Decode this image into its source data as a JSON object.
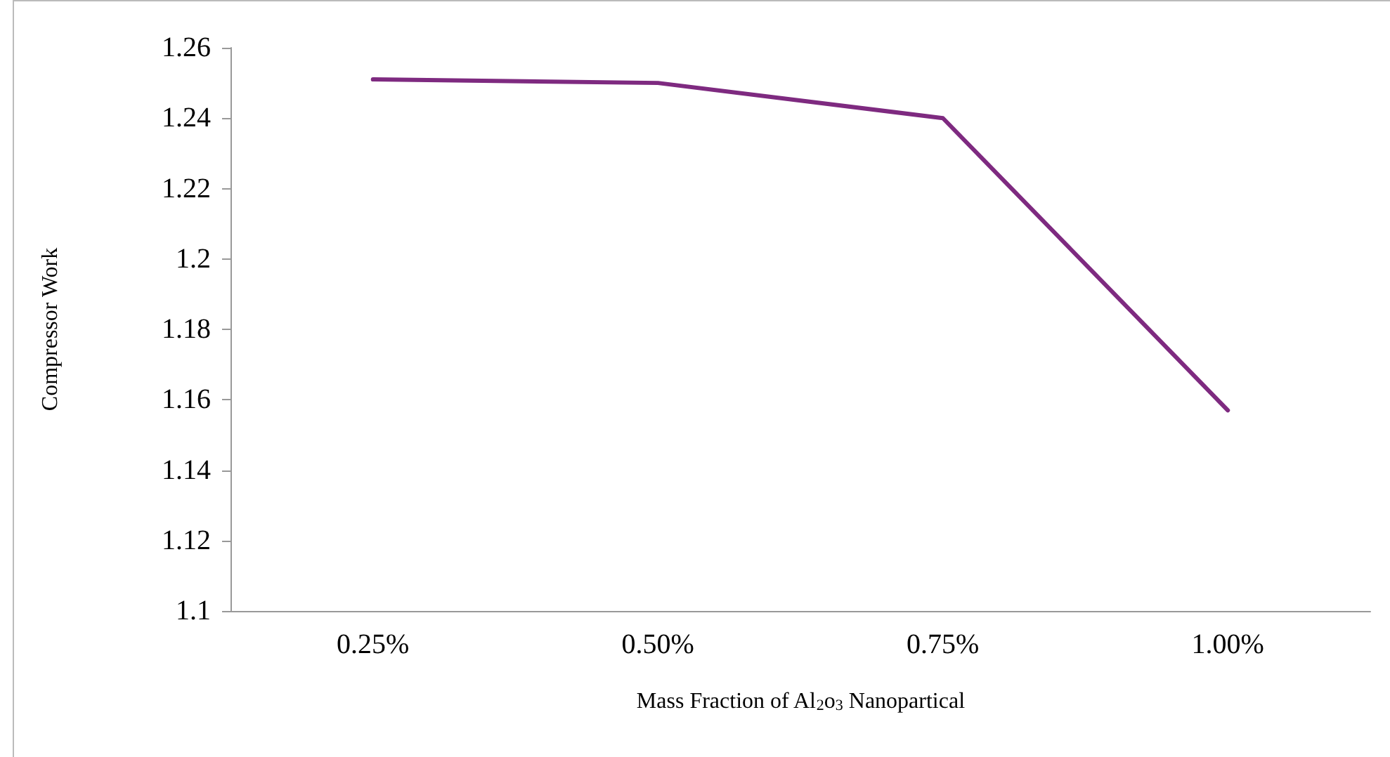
{
  "chart_data": {
    "type": "line",
    "xlabel": "Mass Fraction of Al$_{2}$o$_{3}$ Nanopartical",
    "ylabel": "Compressor Work",
    "categories": [
      "0.25%",
      "0.50%",
      "0.75%",
      "1.00%"
    ],
    "series": [
      {
        "color": "#7e2a80",
        "values": [
          1.251,
          1.25,
          1.24,
          1.157
        ]
      }
    ],
    "ylim": [
      1.1,
      1.26
    ],
    "yticks": [
      1.1,
      1.12,
      1.14,
      1.16,
      1.18,
      1.2,
      1.22,
      1.24,
      1.26
    ],
    "grid": false,
    "marker": "none",
    "line_style": "solid"
  }
}
